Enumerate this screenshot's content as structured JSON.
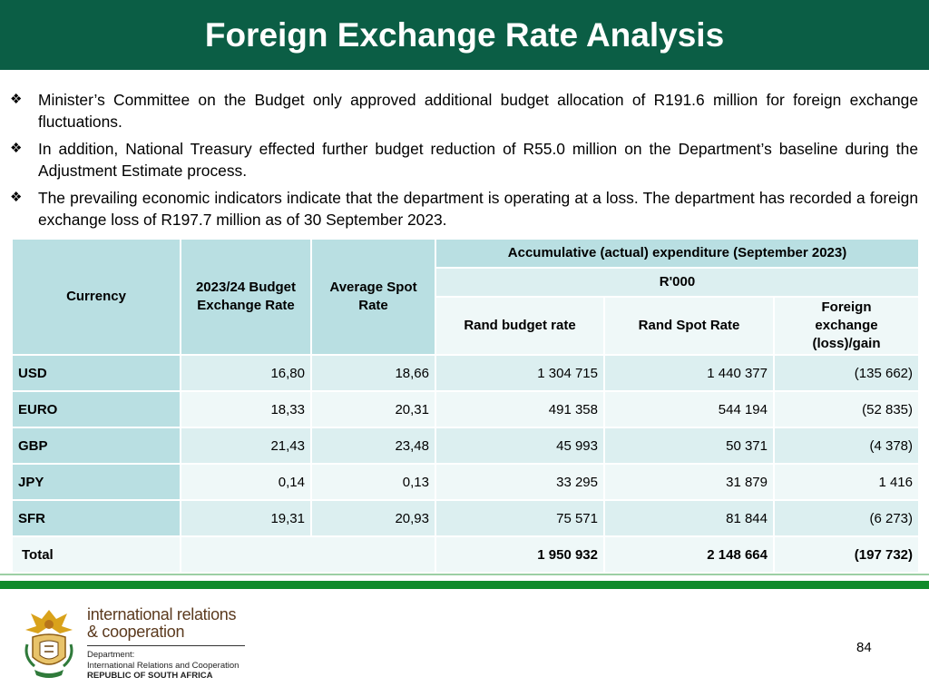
{
  "title": "Foreign Exchange Rate Analysis",
  "bullets": [
    "Minister’s Committee on the Budget only approved additional budget allocation of R191.6 million for foreign exchange fluctuations.",
    "In addition, National Treasury effected further budget reduction of R55.0 million on the Department’s baseline during the Adjustment Estimate process.",
    "The prevailing economic indicators indicate that the department is operating at a loss. The department has recorded a foreign exchange loss of R197.7 million as of 30 September 2023."
  ],
  "table": {
    "headers": {
      "currency": "Currency",
      "budget_rate": "2023/24 Budget Exchange Rate",
      "spot_rate": "Average Spot Rate",
      "group": "Accumulative (actual) expenditure (September 2023)",
      "unit": "R'000",
      "rand_budget": "Rand budget rate",
      "rand_spot": "Rand Spot Rate",
      "fx_gain": "Foreign exchange (loss)/gain"
    },
    "rows": [
      {
        "currency": "USD",
        "budget_rate": "16,80",
        "spot_rate": "18,66",
        "rand_budget": "1 304 715",
        "rand_spot": "1 440 377",
        "fx": "(135 662)"
      },
      {
        "currency": "EURO",
        "budget_rate": "18,33",
        "spot_rate": "20,31",
        "rand_budget": "491 358",
        "rand_spot": "544 194",
        "fx": "(52 835)"
      },
      {
        "currency": "GBP",
        "budget_rate": "21,43",
        "spot_rate": "23,48",
        "rand_budget": "45 993",
        "rand_spot": "50 371",
        "fx": "(4 378)"
      },
      {
        "currency": "JPY",
        "budget_rate": "0,14",
        "spot_rate": "0,13",
        "rand_budget": "33 295",
        "rand_spot": "31 879",
        "fx": "1 416"
      },
      {
        "currency": "SFR",
        "budget_rate": "19,31",
        "spot_rate": "20,93",
        "rand_budget": "75 571",
        "rand_spot": "81 844",
        "fx": "(6 273)"
      }
    ],
    "total": {
      "label": "Total",
      "rand_budget": "1 950 932",
      "rand_spot": "2 148 664",
      "fx": "(197 732)"
    }
  },
  "footer": {
    "logo_line1": "international relations",
    "logo_line2": "& cooperation",
    "dept_label": "Department:",
    "dept_name": "International Relations and Cooperation",
    "country": "REPUBLIC OF SOUTH AFRICA",
    "page_number": "84"
  },
  "colors": {
    "title_bg": "#0b5e45",
    "header_cell": "#b9dfe2",
    "row_light": "#eff8f8",
    "row_mid": "#dceff0",
    "footer_line": "#0f8a2a"
  }
}
